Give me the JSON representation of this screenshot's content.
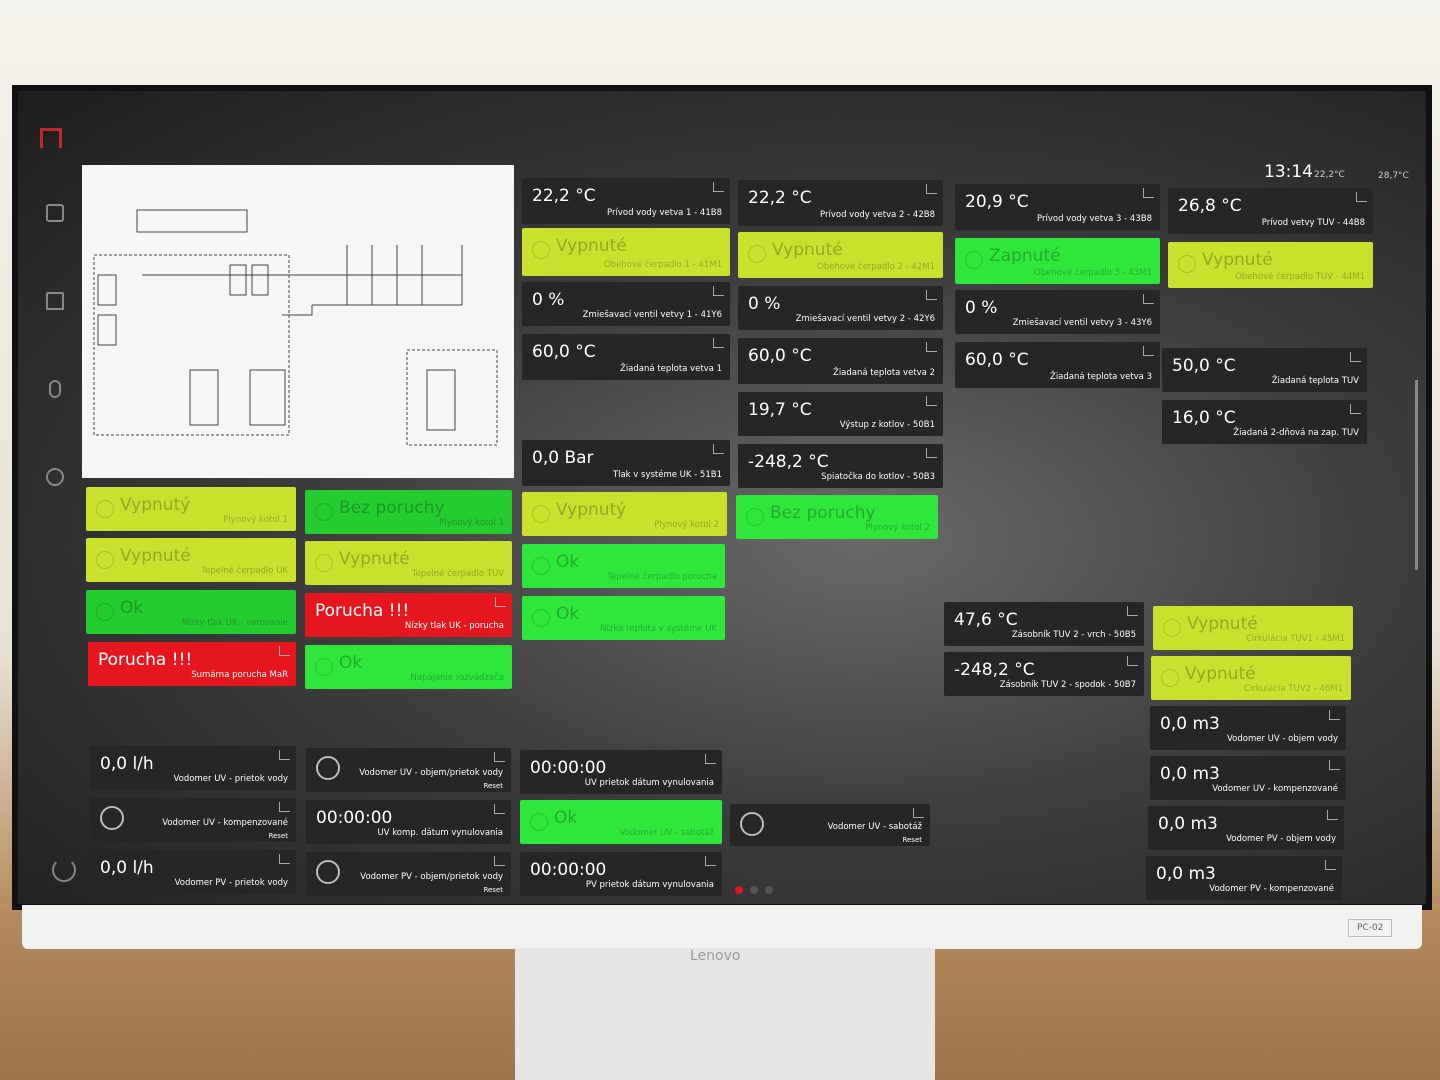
{
  "header": {
    "time": "13:14",
    "temps": [
      "22,2°C",
      "28,7°C"
    ]
  },
  "device": {
    "brand": "Lenovo",
    "label": "PC-02"
  },
  "tiles": [
    {
      "value": "22,2 °C",
      "label": "Prívod vody vetva 1 - 41B8",
      "color": "#262626"
    },
    {
      "value": "Vypnuté",
      "label": "Obehové čerpadlo 1 - 41M1",
      "color": "#c9e12c"
    },
    {
      "value": "0 %",
      "label": "Zmiešavací ventil vetvy 1 - 41Y6",
      "color": "#262626"
    },
    {
      "value": "60,0 °C",
      "label": "Žiadaná teplota vetva 1",
      "color": "#262626"
    },
    {
      "value": "0,0 Bar",
      "label": "Tlak v systéme UK - 51B1",
      "color": "#262626"
    },
    {
      "value": "22,2 °C",
      "label": "Prívod vody vetva 2 - 42B8",
      "color": "#262626"
    },
    {
      "value": "Vypnuté",
      "label": "Obehové čerpadlo 2 - 42M1",
      "color": "#c9e12c"
    },
    {
      "value": "0 %",
      "label": "Zmiešavací ventil vetvy 2 - 42Y6",
      "color": "#262626"
    },
    {
      "value": "60,0 °C",
      "label": "Žiadaná teplota vetva 2",
      "color": "#262626"
    },
    {
      "value": "19,7 °C",
      "label": "Výstup z kotlov - 50B1",
      "color": "#262626"
    },
    {
      "value": "-248,2 °C",
      "label": "Spiatočka do kotlov - 50B3",
      "color": "#262626"
    },
    {
      "value": "20,9 °C",
      "label": "Prívod vody vetva 3 - 43B8",
      "color": "#262626"
    },
    {
      "value": "Zapnuté",
      "label": "Obehové čerpadlo 3 - 43M1",
      "color": "#2fe63a"
    },
    {
      "value": "0 %",
      "label": "Zmiešavací ventil vetvy 3 - 43Y6",
      "color": "#262626"
    },
    {
      "value": "60,0 °C",
      "label": "Žiadaná teplota vetva 3",
      "color": "#262626"
    },
    {
      "value": "26,8 °C",
      "label": "Prívod vetvy TUV - 44B8",
      "color": "#262626"
    },
    {
      "value": "Vypnuté",
      "label": "Obehové čerpadlo TUV - 44M1",
      "color": "#c9e12c"
    },
    {
      "value": "50,0 °C",
      "label": "Žiadaná teplota TUV",
      "color": "#262626"
    },
    {
      "value": "16,0 °C",
      "label": "Žiadaná 2-dňová na zap. TUV",
      "color": "#262626"
    },
    {
      "value": "Vypnutý",
      "label": "Plynový kotol 1",
      "color": "#c9e12c"
    },
    {
      "value": "Bez poruchy",
      "label": "Plynový kotol 1",
      "color": "#25cc30"
    },
    {
      "value": "Vypnutý",
      "label": "Plynový kotol 2",
      "color": "#c9e12c"
    },
    {
      "value": "Bez poruchy",
      "label": "Plynový kotol 2",
      "color": "#2fe63a"
    },
    {
      "value": "Vypnuté",
      "label": "Tepelné čerpadlo UK",
      "color": "#c9e12c"
    },
    {
      "value": "Vypnuté",
      "label": "Tepelné čerpadlo TUV",
      "color": "#c9e12c"
    },
    {
      "value": "Ok",
      "label": "Tepelné čerpadlo porucha",
      "color": "#2fe63a"
    },
    {
      "value": "Ok",
      "label": "Nízky tlak UK - varovanie",
      "color": "#25cc30"
    },
    {
      "value": "Porucha !!!",
      "label": "Nízky tlak UK - porucha",
      "color": "#e5161e"
    },
    {
      "value": "Ok",
      "label": "Nízka teplota v systéme UK",
      "color": "#2fe63a"
    },
    {
      "value": "Porucha !!!",
      "label": "Sumárna porucha MaR",
      "color": "#e5161e"
    },
    {
      "value": "Ok",
      "label": "Napájanie rozvádzača",
      "color": "#2fe63a"
    },
    {
      "value": "47,6 °C",
      "label": "Zásobník TUV 2 - vrch - 50B5",
      "color": "#262626"
    },
    {
      "value": "-248,2 °C",
      "label": "Zásobník TUV 2 - spodok - 50B7",
      "color": "#262626"
    },
    {
      "value": "Vypnuté",
      "label": "Cirkulácia TUV1 - 45M1",
      "color": "#c9e12c"
    },
    {
      "value": "Vypnuté",
      "label": "Cirkulácia TUV2 - 46M1",
      "color": "#c9e12c"
    },
    {
      "value": "0,0 m3",
      "label": "Vodomer UV - objem vody",
      "color": "#262626"
    },
    {
      "value": "0,0 m3",
      "label": "Vodomer UV - kompenzované",
      "color": "#262626"
    },
    {
      "value": "0,0 m3",
      "label": "Vodomer PV - objem vody",
      "color": "#262626"
    },
    {
      "value": "0,0 m3",
      "label": "Vodomer PV - kompenzované",
      "color": "#262626"
    },
    {
      "value": "0,0 l/h",
      "label": "Vodomer UV - prietok vody",
      "color": "#262626"
    },
    {
      "label": "Vodomer UV - objem/prietok vody",
      "reset": "Reset",
      "color": "#262626"
    },
    {
      "value": "00:00:00",
      "label": "UV prietok dátum vynulovania",
      "color": "#262626"
    },
    {
      "label": "Vodomer UV - kompenzované",
      "reset": "Reset",
      "color": "#262626"
    },
    {
      "value": "00:00:00",
      "label": "UV komp. dátum vynulovania",
      "color": "#262626"
    },
    {
      "value": "Ok",
      "label": "Vodomer UV - sabotáž",
      "color": "#2fe63a"
    },
    {
      "label": "Vodomer UV - sabotáž",
      "reset": "Reset",
      "color": "#262626"
    },
    {
      "value": "0,0 l/h",
      "label": "Vodomer PV - prietok vody",
      "color": "#262626"
    },
    {
      "label": "Vodomer PV - objem/prietok vody",
      "reset": "Reset",
      "color": "#262626"
    },
    {
      "value": "00:00:00",
      "label": "PV prietok dátum vynulovania",
      "color": "#262626"
    }
  ]
}
